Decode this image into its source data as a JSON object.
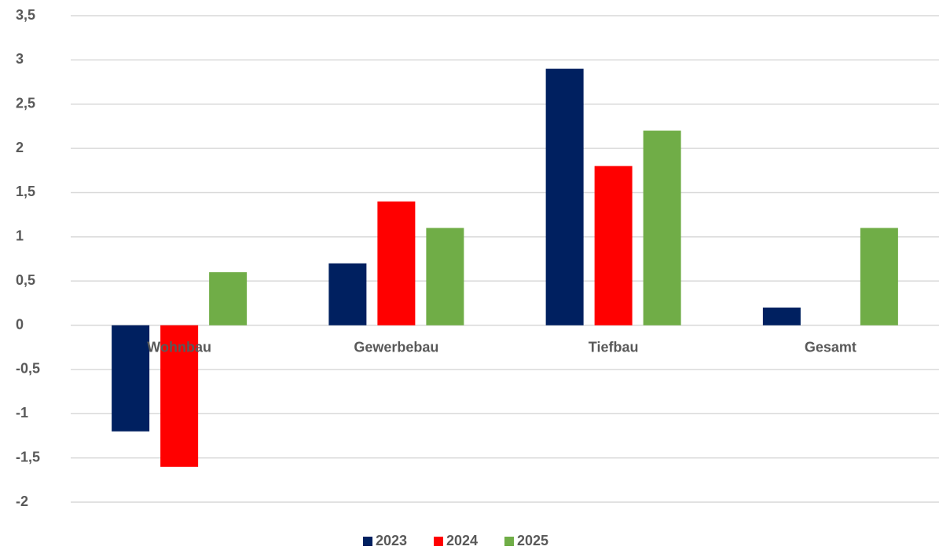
{
  "chart_data": {
    "type": "bar",
    "categories": [
      "Wohnbau",
      "Gewerbebau",
      "Tiefbau",
      "Gesamt"
    ],
    "series": [
      {
        "name": "2023",
        "color": "#002060",
        "values": [
          -1.2,
          0.7,
          2.9,
          0.2
        ]
      },
      {
        "name": "2024",
        "color": "#ff0000",
        "values": [
          -1.6,
          1.4,
          1.8,
          0
        ]
      },
      {
        "name": "2025",
        "color": "#70ad47",
        "values": [
          0.6,
          1.1,
          2.2,
          1.1
        ]
      }
    ],
    "ylim": [
      -2,
      3.5
    ],
    "yticks": [
      {
        "value": -2,
        "label": "-2"
      },
      {
        "value": -1.5,
        "label": "-1,5"
      },
      {
        "value": -1,
        "label": "-1"
      },
      {
        "value": -0.5,
        "label": "-0,5"
      },
      0,
      {
        "value": 0.5,
        "label": "0,5"
      },
      1,
      {
        "value": 1.5,
        "label": "1,5"
      },
      2,
      {
        "value": 2.5,
        "label": "2,5"
      },
      3,
      {
        "value": 3.5,
        "label": "3,5"
      }
    ],
    "grid": true,
    "legend": "bottom"
  }
}
